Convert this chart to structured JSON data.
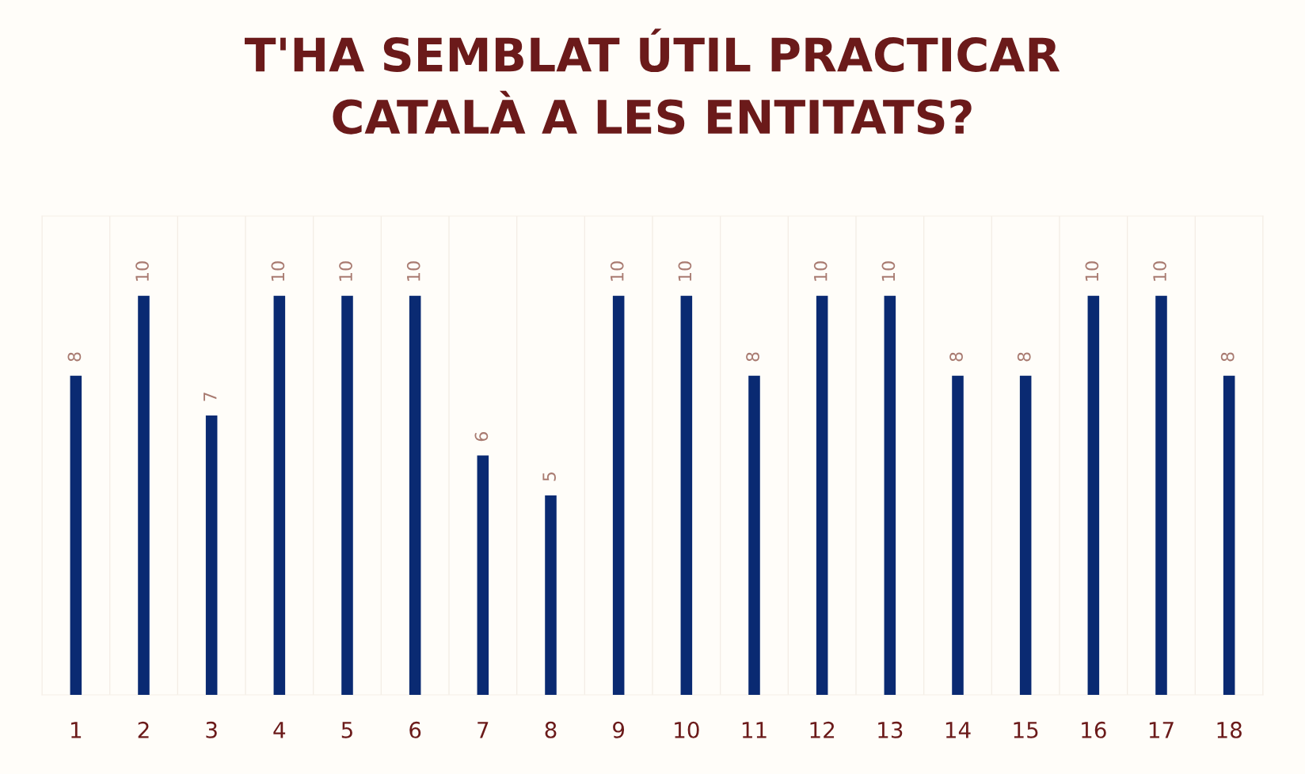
{
  "chart_data": {
    "type": "bar",
    "title": "T'HA SEMBLAT ÚTIL PRACTICAR\nCATALÀ A LES ENTITATS?",
    "categories": [
      "1",
      "2",
      "3",
      "4",
      "5",
      "6",
      "7",
      "8",
      "9",
      "10",
      "11",
      "12",
      "13",
      "14",
      "15",
      "16",
      "17",
      "18"
    ],
    "values": [
      8,
      10,
      7,
      10,
      10,
      10,
      6,
      5,
      10,
      10,
      8,
      10,
      10,
      8,
      8,
      10,
      10,
      8
    ],
    "color": "#0a2a72",
    "ylim": [
      0,
      12
    ],
    "data_labels": true,
    "grid": "x",
    "tick_labels": "x"
  }
}
